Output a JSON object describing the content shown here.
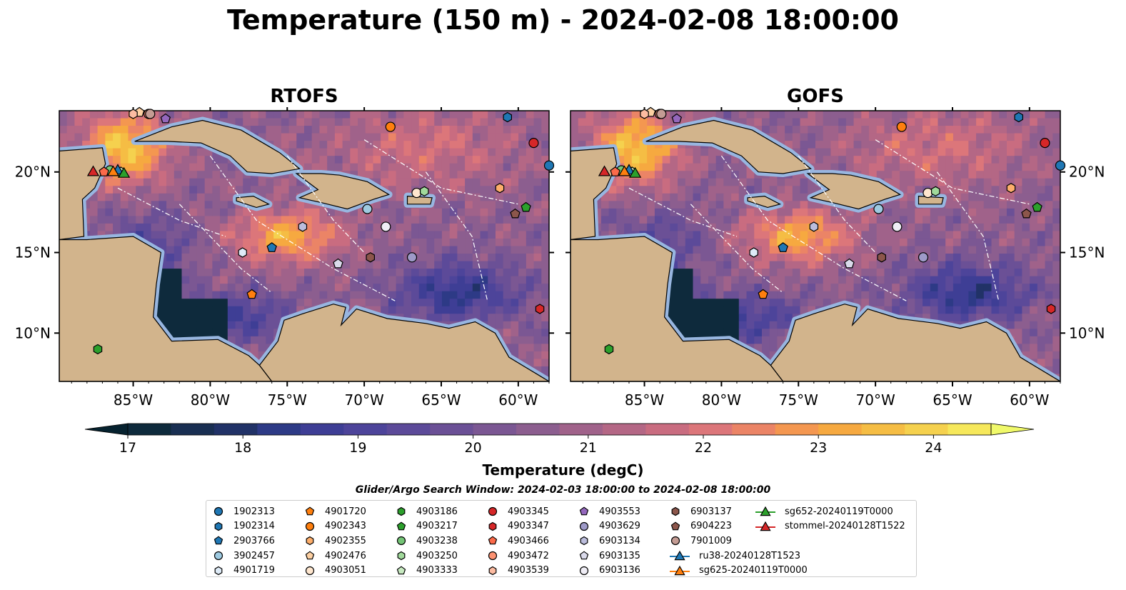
{
  "figure": {
    "title": "Temperature (150 m) - 2024-02-08 18:00:00",
    "panels": [
      {
        "title": "RTOFS"
      },
      {
        "title": "GOFS"
      }
    ],
    "lon_ticks": [
      "85°W",
      "80°W",
      "75°W",
      "70°W",
      "65°W",
      "60°W"
    ],
    "lat_ticks": [
      "20°N",
      "15°N",
      "10°N"
    ],
    "colors": {
      "land": "#d2b48c",
      "shelf": "#98b6e0",
      "deep": "#06243a"
    }
  },
  "chart_data": {
    "type": "heatmap",
    "variable": "Temperature",
    "depth": "150 m",
    "time": "2024-02-08 18:00:00",
    "lon_range": [
      -89.8,
      -58.0
    ],
    "lat_range": [
      7.0,
      23.8
    ],
    "colorbar": {
      "label": "Temperature (degC)",
      "range": [
        17,
        24.5
      ],
      "ticks": [
        "17",
        "18",
        "19",
        "20",
        "21",
        "22",
        "23",
        "24"
      ],
      "tick_values": [
        17,
        18,
        19,
        20,
        21,
        22,
        23,
        24
      ],
      "colors": [
        "#0e2a3c",
        "#192f52",
        "#213267",
        "#2d3a86",
        "#3e3e95",
        "#4d449a",
        "#5c4a99",
        "#6b5096",
        "#7b5793",
        "#8c5e8f",
        "#a0628a",
        "#b46785",
        "#c96c80",
        "#dc767a",
        "#eb8466",
        "#f49750",
        "#f6a940",
        "#f5bd44",
        "#f5d14e",
        "#f6e85b"
      ]
    },
    "search_window": "Glider/Argo Search Window: 2024-02-03 18:00:00 to 2024-02-08 18:00:00",
    "markers": [
      {
        "id": "1902313",
        "shape": "circle",
        "color": "#1f77b4",
        "lon": -58.0,
        "lat": 20.4
      },
      {
        "id": "1902314",
        "shape": "hexagon",
        "color": "#1f77b4",
        "lon": -60.7,
        "lat": 23.4
      },
      {
        "id": "2903766",
        "shape": "pentagon",
        "color": "#1f77b4",
        "lon": -76.0,
        "lat": 15.3
      },
      {
        "id": "3902457",
        "shape": "circle",
        "color": "#9ecae1",
        "lon": -69.8,
        "lat": 17.7
      },
      {
        "id": "4901719",
        "shape": "hexagon",
        "color": "#deebf7",
        "lon": -77.9,
        "lat": 15.0
      },
      {
        "id": "4901720",
        "shape": "pentagon",
        "color": "#ff7f0e",
        "lon": -77.3,
        "lat": 12.4
      },
      {
        "id": "4902343",
        "shape": "circle",
        "color": "#ff7f0e",
        "lon": -68.3,
        "lat": 22.8
      },
      {
        "id": "4902355",
        "shape": "hexagon",
        "color": "#fdae6b",
        "lon": -61.2,
        "lat": 19.0
      },
      {
        "id": "4902476",
        "shape": "pentagon",
        "color": "#fdd0a2",
        "lon": -84.6,
        "lat": 23.7
      },
      {
        "id": "4903051",
        "shape": "circle",
        "color": "#fee6ce",
        "lon": -66.6,
        "lat": 18.7
      },
      {
        "id": "4903186",
        "shape": "hexagon",
        "color": "#2ca02c",
        "lon": -87.3,
        "lat": 9.0
      },
      {
        "id": "4903217",
        "shape": "pentagon",
        "color": "#2ca02c",
        "lon": -59.5,
        "lat": 17.8
      },
      {
        "id": "4903238",
        "shape": "circle",
        "color": "#74c476",
        "lon": -86.5,
        "lat": 20.1
      },
      {
        "id": "4903250",
        "shape": "hexagon",
        "color": "#a1d99b",
        "lon": -66.1,
        "lat": 18.8
      },
      {
        "id": "4903333",
        "shape": "pentagon",
        "color": "#c7e9c0",
        "lon": -85.8,
        "lat": 20.0
      },
      {
        "id": "4903345",
        "shape": "circle",
        "color": "#d62728",
        "lon": -59.0,
        "lat": 21.8
      },
      {
        "id": "4903347",
        "shape": "hexagon",
        "color": "#d62728",
        "lon": -58.6,
        "lat": 11.5
      },
      {
        "id": "4903466",
        "shape": "pentagon",
        "color": "#fb6a4a",
        "lon": -86.9,
        "lat": 20.0
      },
      {
        "id": "4903472",
        "shape": "circle",
        "color": "#fc9272",
        "lon": -84.0,
        "lat": 23.6
      },
      {
        "id": "4903539",
        "shape": "hexagon",
        "color": "#fcbba1",
        "lon": -85.0,
        "lat": 23.6
      },
      {
        "id": "4903553",
        "shape": "pentagon",
        "color": "#9467bd",
        "lon": -82.9,
        "lat": 23.3
      },
      {
        "id": "4903629",
        "shape": "circle",
        "color": "#9e9ac8",
        "lon": -66.9,
        "lat": 14.7
      },
      {
        "id": "6903134",
        "shape": "hexagon",
        "color": "#bcbddc",
        "lon": -74.0,
        "lat": 16.6
      },
      {
        "id": "6903135",
        "shape": "pentagon",
        "color": "#dadaeb",
        "lon": -71.7,
        "lat": 14.3
      },
      {
        "id": "6903136",
        "shape": "circle",
        "color": "#efedf5",
        "lon": -68.6,
        "lat": 16.6
      },
      {
        "id": "6903137",
        "shape": "hexagon",
        "color": "#8c564b",
        "lon": -69.6,
        "lat": 14.7
      },
      {
        "id": "6904223",
        "shape": "pentagon",
        "color": "#8c564b",
        "lon": -60.2,
        "lat": 17.4
      },
      {
        "id": "7901009",
        "shape": "circle",
        "color": "#c49c94",
        "lon": -83.9,
        "lat": 23.6
      }
    ],
    "gliders": [
      {
        "id": "ru38-20240128T1523",
        "color": "#1f77b4",
        "lon": -86.0,
        "lat": 20.1
      },
      {
        "id": "sg625-20240119T0000",
        "color": "#ff7f0e",
        "lon": -86.3,
        "lat": 20.0
      },
      {
        "id": "sg652-20240119T0000",
        "color": "#2ca02c",
        "lon": -85.6,
        "lat": 19.9
      },
      {
        "id": "stommel-20240128T1522",
        "color": "#d62728",
        "lon": -87.6,
        "lat": 20.0
      }
    ]
  }
}
